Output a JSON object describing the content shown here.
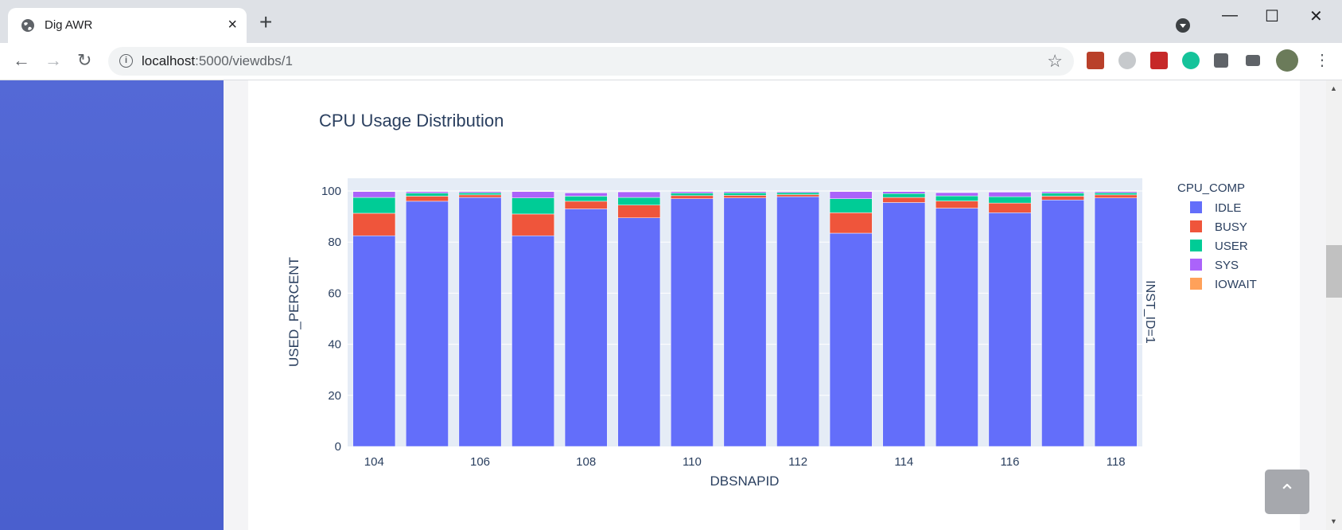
{
  "browser": {
    "tab_title": "Dig AWR",
    "tab_close": "×",
    "new_tab": "+",
    "url_host": "localhost",
    "url_path": ":5000/viewdbs/1",
    "window_controls": [
      "—",
      "☐",
      "✕"
    ],
    "icons": [
      "globe-icon",
      "back-arrow-icon",
      "forward-arrow-icon",
      "reload-icon",
      "info-icon",
      "star-icon",
      "extensions-icon",
      "media-icon",
      "menu-icon"
    ]
  },
  "page": {
    "back_to_top_icon": "chevron-up-icon",
    "colors": {
      "sidebar": "#4f64d3",
      "plot_bg": "#e5ecf6"
    }
  },
  "chart_data": {
    "type": "bar",
    "stacked": true,
    "title": "CPU Usage Distribution",
    "xlabel": "DBSNAPID",
    "ylabel": "USED_PERCENT",
    "facet_label": "INST_ID=1",
    "legend_title": "CPU_COMP",
    "legend_position": "right",
    "ylim": [
      0,
      105
    ],
    "yticks": [
      0,
      20,
      40,
      60,
      80,
      100
    ],
    "xticks": [
      104,
      106,
      108,
      110,
      112,
      114,
      116,
      118
    ],
    "categories": [
      104,
      105,
      106,
      107,
      108,
      109,
      110,
      111,
      112,
      113,
      114,
      115,
      116,
      117,
      118
    ],
    "grid": true,
    "series": [
      {
        "name": "IDLE",
        "color": "#636efa",
        "values": [
          82.5,
          96,
          97.5,
          82.5,
          93,
          89.5,
          97,
          97.3,
          97.8,
          83.5,
          95.5,
          93.3,
          91.5,
          96.5,
          97.3
        ]
      },
      {
        "name": "BUSY",
        "color": "#ef553b",
        "values": [
          8.8,
          2,
          1,
          8.5,
          3,
          5,
          1.2,
          1,
          0.8,
          8,
          2,
          2.8,
          3.8,
          1.5,
          1.2
        ]
      },
      {
        "name": "USER",
        "color": "#00cc96",
        "values": [
          6.2,
          1.2,
          0.8,
          6.3,
          2,
          3,
          1,
          1,
          0.8,
          5.5,
          1.5,
          2,
          2.5,
          1.2,
          0.8
        ]
      },
      {
        "name": "SYS",
        "color": "#ab63fa",
        "values": [
          2.3,
          0.6,
          0.5,
          2.5,
          1.3,
          2.2,
          0.6,
          0.5,
          0.4,
          2.8,
          0.8,
          1.3,
          1.8,
          0.6,
          0.5
        ]
      },
      {
        "name": "IOWAIT",
        "color": "#ffa15a",
        "values": [
          0.1,
          0.1,
          0.1,
          0.1,
          0.1,
          0.1,
          0.1,
          0.1,
          0.1,
          0.1,
          0.1,
          0.1,
          0.1,
          0.1,
          0.1
        ]
      }
    ]
  }
}
